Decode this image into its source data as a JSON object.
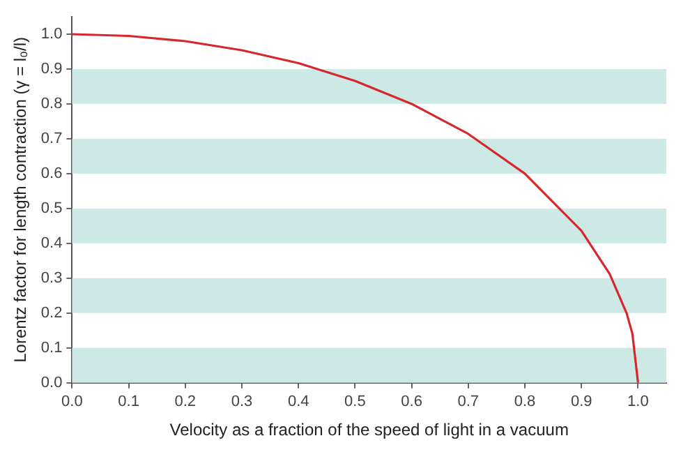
{
  "chart_data": {
    "type": "line",
    "xlabel": "Velocity as a fraction of the speed of light in a vacuum",
    "ylabel": "Lorentz factor for length contraction (γ = l₀/l)",
    "x": [
      0,
      0.1,
      0.2,
      0.3,
      0.4,
      0.5,
      0.6,
      0.7,
      0.8,
      0.9,
      0.95,
      0.98,
      0.99,
      1.0
    ],
    "series": [
      {
        "color": "#d7262c",
        "values": [
          1,
          0.995,
          0.98,
          0.954,
          0.917,
          0.866,
          0.8,
          0.714,
          0.6,
          0.436,
          0.312,
          0.199,
          0.141,
          0
        ]
      }
    ],
    "xlim": [
      0,
      1.05
    ],
    "xticks": [
      {
        "value": 0,
        "label": "0.0"
      },
      0.1,
      0.2,
      0.3,
      0.4,
      0.5,
      0.6,
      0.7,
      0.8,
      0.9,
      {
        "value": 1,
        "label": "1.0"
      }
    ],
    "ylim": [
      0,
      1.05
    ],
    "yticks": [
      {
        "value": 0,
        "label": "0.0"
      },
      0.1,
      0.2,
      0.3,
      0.4,
      0.5,
      0.6,
      0.7,
      0.8,
      0.9,
      {
        "value": 1,
        "label": "1.0"
      }
    ],
    "bands": [
      {
        "axis": "y",
        "from": 0,
        "to": 0.1,
        "color": "#cde9e6"
      },
      {
        "axis": "y",
        "from": 0.2,
        "to": 0.3,
        "color": "#cde9e6"
      },
      {
        "axis": "y",
        "from": 0.4,
        "to": 0.5,
        "color": "#cde9e6"
      },
      {
        "axis": "y",
        "from": 0.6,
        "to": 0.7,
        "color": "#cde9e6"
      },
      {
        "axis": "y",
        "from": 0.8,
        "to": 0.9,
        "color": "#cde9e6"
      }
    ],
    "grid": false,
    "legend": false,
    "marker": "none",
    "line_style": "solid"
  }
}
